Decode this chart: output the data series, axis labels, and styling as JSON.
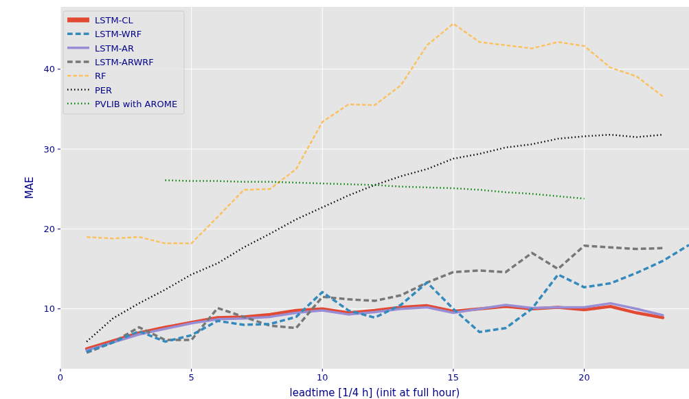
{
  "chart_data": {
    "type": "line",
    "xlabel": "leadtime [1/4 h] (init at full hour)",
    "ylabel": "MAE",
    "xlim": [
      0,
      24
    ],
    "xticks": [
      0,
      5,
      10,
      15,
      20
    ],
    "ylim": [
      2.5,
      47.8
    ],
    "yticks": [
      10,
      20,
      30,
      40
    ],
    "grid": true,
    "legend": "top left",
    "x": [
      1,
      2,
      3,
      4,
      5,
      6,
      7,
      8,
      9,
      10,
      11,
      12,
      13,
      14,
      15,
      16,
      17,
      18,
      19,
      20,
      21,
      22,
      23
    ],
    "series": [
      {
        "name": "LSTM-CL",
        "color": "#e24a33",
        "line_style": "solid",
        "values": [
          5.0,
          6.0,
          7.0,
          7.7,
          8.3,
          8.9,
          9.0,
          9.3,
          9.8,
          10.0,
          9.5,
          9.8,
          10.2,
          10.4,
          9.7,
          10.0,
          10.3,
          10.0,
          10.2,
          9.9,
          10.3,
          9.5,
          8.9
        ]
      },
      {
        "name": "LSTM-WRF",
        "color": "#348abd",
        "line_style": "dashed",
        "x": [
          1,
          2,
          3,
          4,
          5,
          6,
          7,
          8,
          9,
          10,
          11,
          12,
          13,
          14,
          15,
          16,
          17,
          18,
          19,
          20,
          21,
          22,
          23,
          24
        ],
        "values": [
          4.6,
          5.8,
          7.2,
          5.9,
          6.7,
          8.5,
          8.0,
          8.1,
          9.0,
          12.1,
          9.8,
          8.9,
          10.5,
          13.3,
          10.0,
          7.1,
          7.6,
          10.0,
          14.3,
          12.7,
          13.2,
          14.5,
          16.0,
          18.0
        ]
      },
      {
        "name": "LSTM-AR",
        "color": "#988ed5",
        "line_style": "solid",
        "values": [
          4.8,
          5.8,
          6.8,
          7.5,
          8.2,
          8.7,
          8.8,
          9.0,
          9.5,
          9.8,
          9.3,
          9.6,
          10.0,
          10.2,
          9.5,
          10.0,
          10.5,
          10.1,
          10.2,
          10.2,
          10.7,
          10.0,
          9.2
        ]
      },
      {
        "name": "LSTM-ARWRF",
        "color": "#777777",
        "line_style": "dashed",
        "values": [
          4.5,
          5.8,
          7.7,
          6.1,
          6.1,
          10.1,
          9.0,
          7.9,
          7.6,
          11.5,
          11.2,
          11.0,
          11.7,
          13.3,
          14.6,
          14.8,
          14.6,
          17.0,
          15.0,
          17.9,
          17.7,
          17.5,
          17.6
        ]
      },
      {
        "name": "RF",
        "color": "#fbc15e",
        "line_style": "dashed",
        "values": [
          19.0,
          18.8,
          19.0,
          18.2,
          18.2,
          21.5,
          24.9,
          25.0,
          27.5,
          33.4,
          35.6,
          35.5,
          38.0,
          43.0,
          45.7,
          43.4,
          43.0,
          42.6,
          43.4,
          42.9,
          40.2,
          39.1,
          36.6
        ]
      },
      {
        "name": "PER",
        "color": "#000000",
        "line_style": "dotted",
        "values": [
          5.9,
          8.8,
          10.7,
          12.4,
          14.3,
          15.7,
          17.7,
          19.4,
          21.2,
          22.7,
          24.2,
          25.5,
          26.6,
          27.5,
          28.8,
          29.4,
          30.2,
          30.6,
          31.3,
          31.6,
          31.8,
          31.5,
          31.8
        ]
      },
      {
        "name": "PVLIB with AROME",
        "color": "#008000",
        "line_style": "dotted",
        "x": [
          4,
          5,
          6,
          7,
          8,
          9,
          10,
          11,
          12,
          13,
          14,
          15,
          16,
          17,
          18,
          19,
          20
        ],
        "values": [
          26.1,
          26.0,
          26.0,
          25.9,
          25.9,
          25.8,
          25.7,
          25.6,
          25.5,
          25.3,
          25.2,
          25.1,
          24.9,
          24.6,
          24.4,
          24.1,
          23.8
        ]
      }
    ]
  }
}
